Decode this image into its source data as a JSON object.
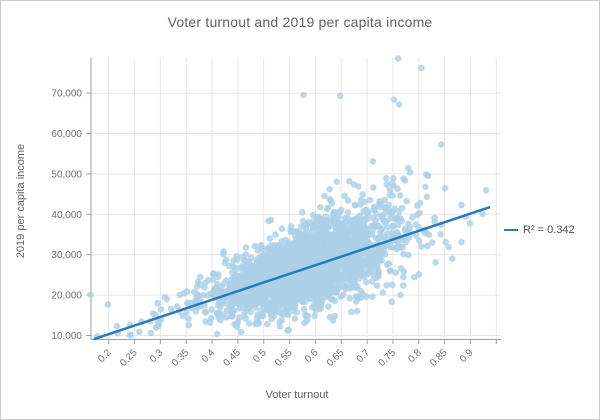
{
  "title": {
    "text": "Voter turnout and 2019 per capita income"
  },
  "legend": {
    "label": "R² = 0.342"
  },
  "colors": {
    "point": "#abd0e7",
    "trend": "#2a7ab9",
    "grid": "#e6e6e6",
    "axis": "#9e9e9e",
    "title_text": "#5f6368",
    "tick_text": "#6f6f6f",
    "axis_title_text": "#616161",
    "legend_text": "#4d4d4d",
    "frame_border": "#cccccc"
  },
  "chart_data": {
    "type": "scatter",
    "title": "Voter turnout and 2019 per capita income",
    "xlabel": "Voter turnout",
    "ylabel": "2019 per capita income",
    "xlim": [
      0.165,
      0.96
    ],
    "ylim": [
      9000,
      79000
    ],
    "grid": true,
    "legend_position": "right",
    "x_ticks": [
      0.2,
      0.25,
      0.3,
      0.35,
      0.4,
      0.45,
      0.5,
      0.55,
      0.6,
      0.65,
      0.7,
      0.75,
      0.8,
      0.85,
      0.9,
      0.95
    ],
    "x_tick_labels": [
      "0.2",
      "0.25",
      "0.3",
      "0.35",
      "0.4",
      "0.45",
      "0.5",
      "0.55",
      "0.6",
      "0.65",
      "0.7",
      "0.75",
      "0.8",
      "0.85",
      "0.9",
      ""
    ],
    "y_ticks": [
      10000,
      20000,
      30000,
      40000,
      50000,
      60000,
      70000
    ],
    "y_tick_labels": [
      "10,000",
      "20,000",
      "30,000",
      "40,000",
      "50,000",
      "60,000",
      "70,000"
    ],
    "trendline": {
      "x1": 0.171,
      "y1": 9100,
      "x2": 0.938,
      "y2": 41800,
      "r_squared": 0.342,
      "label": "R² = 0.342"
    },
    "point_style": {
      "radius": 3.3,
      "opacity": 0.8
    },
    "distribution": {
      "seed": 987321,
      "count": 2600,
      "x_mean": 0.585,
      "x_std": 0.082,
      "x_tail_mean": 0.56,
      "x_tail_std": 0.15,
      "x_tail_weight": 0.12,
      "x_min": 0.165,
      "x_max": 0.955,
      "slope": 42700,
      "intercept": 1750,
      "resid_base": 3200,
      "resid_x_factor": 6500,
      "resid_onset": 0.35,
      "upper_skew_gain": 1.1,
      "skew_onset": 0.45,
      "y_min": 9500,
      "y_max": 76000
    },
    "outlier_points": [
      [
        0.165,
        20100
      ],
      [
        0.76,
        78600
      ],
      [
        0.805,
        76200
      ],
      [
        0.577,
        69500
      ],
      [
        0.648,
        69300
      ],
      [
        0.752,
        68400
      ],
      [
        0.762,
        67200
      ]
    ]
  }
}
